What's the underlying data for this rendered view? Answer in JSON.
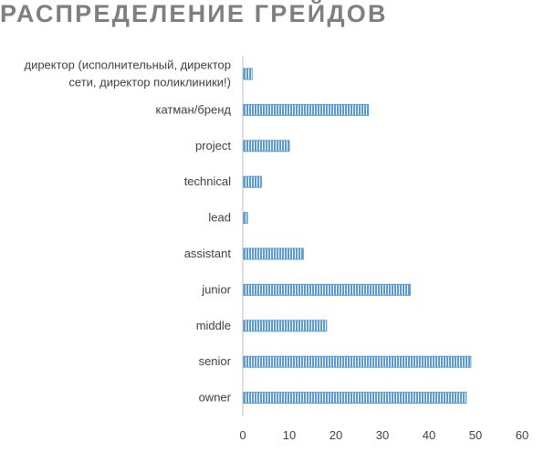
{
  "chart_data": {
    "type": "bar",
    "orientation": "horizontal",
    "title": "РАСПРЕДЕЛЕНИЕ ГРЕЙДОВ",
    "categories": [
      "директор (исполнительный, директор сети, директор поликлиники!)",
      "катман/бренд",
      "project",
      "technical",
      "lead",
      "assistant",
      "junior",
      "middle",
      "senior",
      "owner"
    ],
    "category_label_lines": [
      [
        "директор (исполнительный, директор",
        "сети, директор поликлиники!)"
      ],
      [
        "катман/бренд"
      ],
      [
        "project"
      ],
      [
        "technical"
      ],
      [
        "lead"
      ],
      [
        "assistant"
      ],
      [
        "junior"
      ],
      [
        "middle"
      ],
      [
        "senior"
      ],
      [
        "owner"
      ]
    ],
    "values": [
      2,
      27,
      10,
      4,
      1,
      13,
      36,
      18,
      49,
      48
    ],
    "xlim": [
      0,
      60
    ],
    "x_ticks": [
      "0",
      "10",
      "20",
      "30",
      "40",
      "50",
      "60"
    ],
    "xlabel": "",
    "ylabel": "",
    "grid": false,
    "legend": "none",
    "bar_color": "#5b9bd5",
    "bar_pattern": "vertical-stripes"
  }
}
